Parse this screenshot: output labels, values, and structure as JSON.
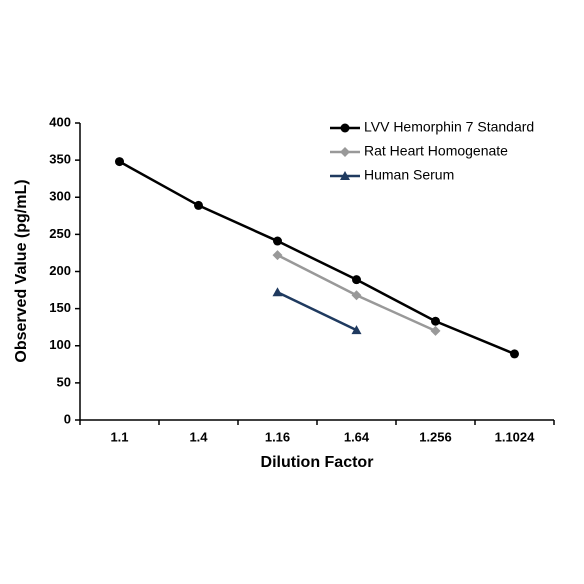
{
  "chart_data": {
    "type": "line",
    "x_label": "Dilution Factor",
    "y_label": "Observed Value (pg/mL)",
    "categories": [
      "1.1",
      "1.4",
      "1.16",
      "1.64",
      "1.256",
      "1.1024"
    ],
    "series": [
      {
        "name": "LVV Hemorphin 7  Standard",
        "color": "#000000",
        "marker": "circle",
        "values": [
          348,
          289,
          241,
          189,
          133,
          89
        ]
      },
      {
        "name": "Rat Heart Homogenate",
        "color": "#999999",
        "marker": "diamond",
        "values": [
          null,
          null,
          222,
          168,
          120,
          null
        ]
      },
      {
        "name": "Human Serum",
        "color": "#1f3a5f",
        "marker": "triangle",
        "values": [
          null,
          null,
          172,
          121,
          null,
          null
        ]
      }
    ],
    "ylim": [
      0,
      400
    ],
    "yticks": [
      0,
      50,
      100,
      150,
      200,
      250,
      300,
      350,
      400
    ],
    "grid": false,
    "legend": "top-right"
  }
}
